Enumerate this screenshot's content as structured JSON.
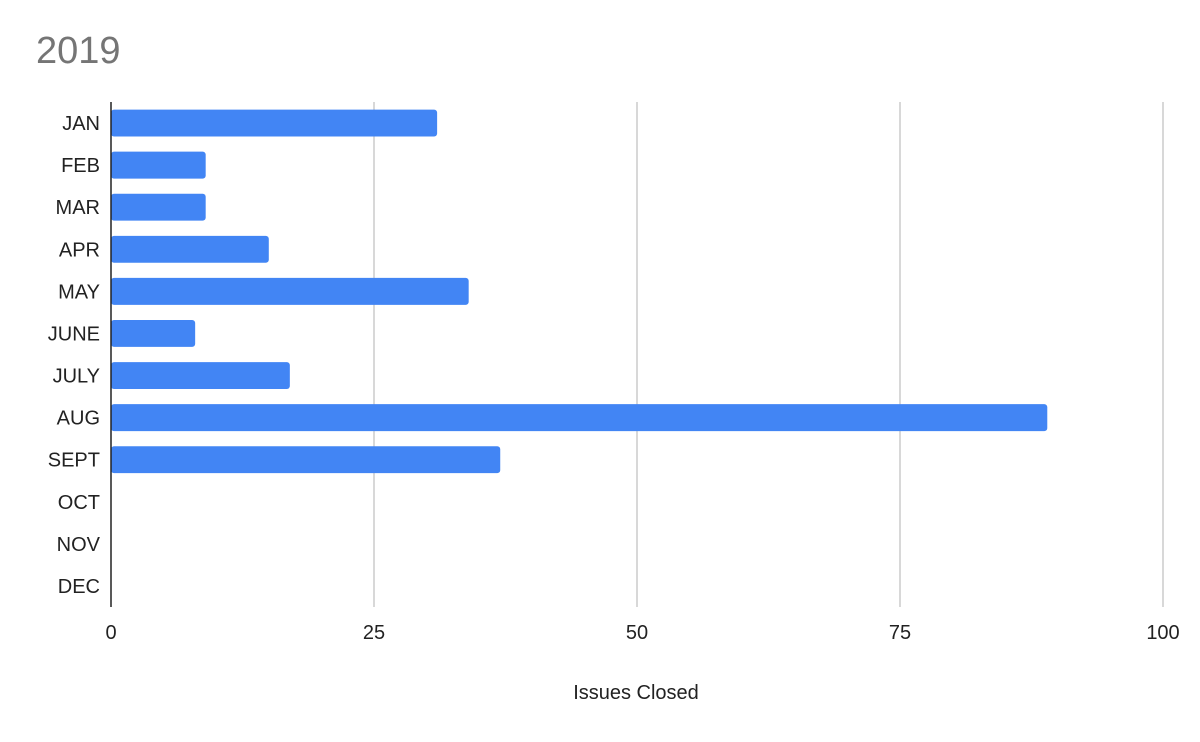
{
  "chart_data": {
    "type": "bar",
    "orientation": "horizontal",
    "title": "2019",
    "xlabel": "Issues Closed",
    "ylabel": "",
    "categories": [
      "JAN",
      "FEB",
      "MAR",
      "APR",
      "MAY",
      "JUNE",
      "JULY",
      "AUG",
      "SEPT",
      "OCT",
      "NOV",
      "DEC"
    ],
    "values": [
      31,
      9,
      9,
      15,
      34,
      8,
      17,
      89,
      37,
      0,
      0,
      0
    ],
    "xlim": [
      0,
      100
    ],
    "xticks": [
      "0",
      "25",
      "50",
      "75",
      "100"
    ],
    "grid": "vertical",
    "legend": "none",
    "bar_color": "#4285f4",
    "grid_color": "#cccccc",
    "axis_color": "#222222"
  }
}
